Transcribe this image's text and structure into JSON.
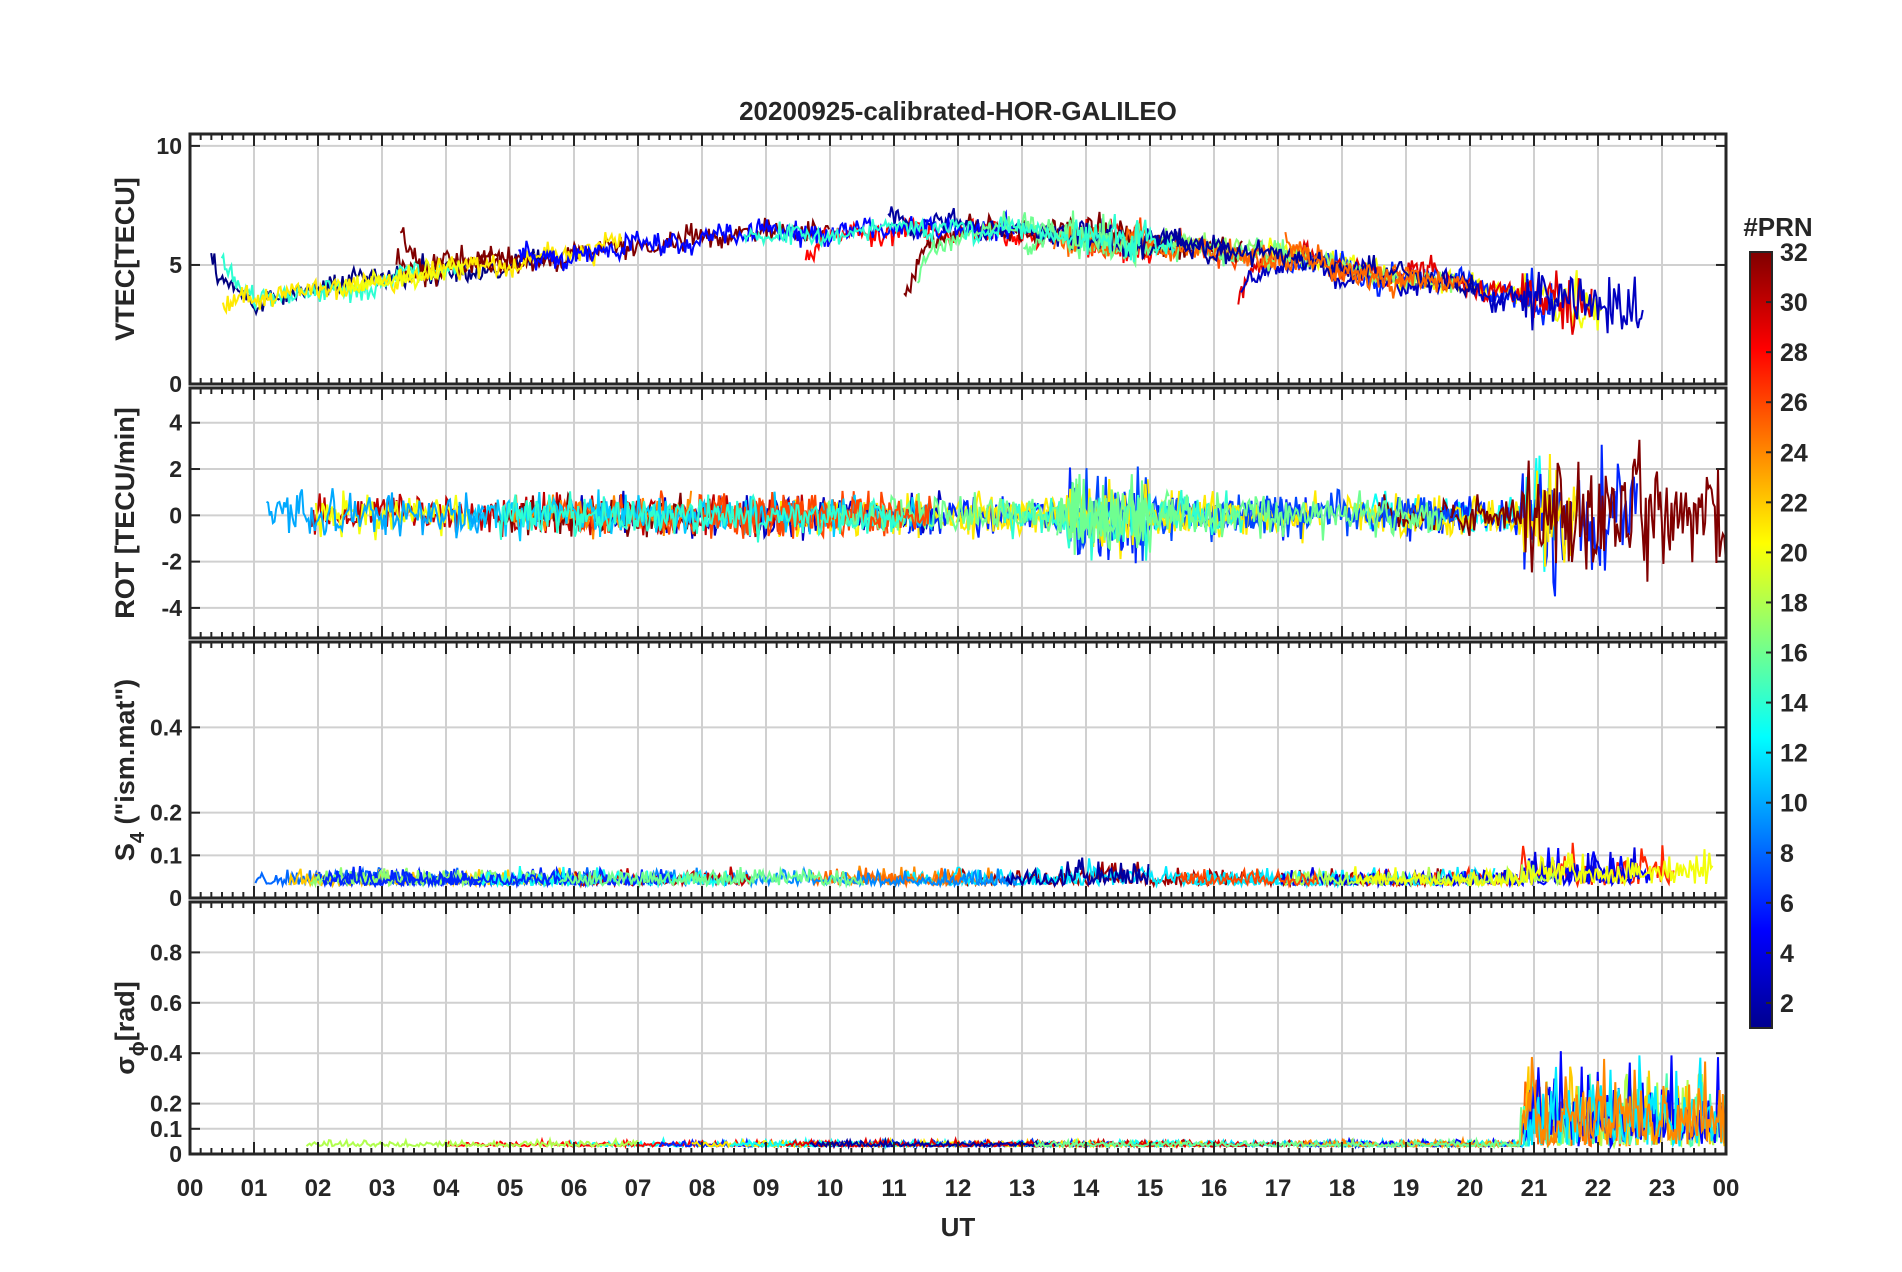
{
  "title": "20200925-calibrated-HOR-GALILEO",
  "colors": {
    "axis": "#262626",
    "grid": "#d0d0d0",
    "colormap": "jet"
  },
  "chart_data": [
    {
      "type": "line",
      "panel": "vtec",
      "ylabel": "VTEC[TECU]",
      "ylim": [
        0,
        10.5
      ],
      "yticks": [
        0,
        5,
        10
      ],
      "xlim": [
        0,
        24
      ],
      "grid": true
    },
    {
      "type": "line",
      "panel": "rot",
      "ylabel": "ROT [TECU/min]",
      "ylim": [
        -5.3,
        5.5
      ],
      "yticks": [
        -4,
        -2,
        0,
        2,
        4
      ],
      "xlim": [
        0,
        24
      ],
      "grid": true
    },
    {
      "type": "line",
      "panel": "s4",
      "ylabel_main": "S",
      "ylabel_sub": "4",
      "ylabel_rest": " (\"ism.mat\")",
      "ylim": [
        0,
        0.6
      ],
      "yticks": [
        0,
        0.1,
        0.2,
        0.4
      ],
      "ytick_labels": [
        "0",
        "0.1",
        "0.2",
        "0.4"
      ],
      "xlim": [
        0,
        24
      ],
      "grid": true
    },
    {
      "type": "line",
      "panel": "sigma_phi",
      "ylabel_main": "σ",
      "ylabel_sub": "ϕ",
      "ylabel_rest": "[rad]",
      "ylim": [
        0,
        1.0
      ],
      "yticks": [
        0,
        0.1,
        0.2,
        0.4,
        0.6,
        0.8
      ],
      "ytick_labels": [
        "0",
        "0.1",
        "0.2",
        "0.4",
        "0.6",
        "0.8"
      ],
      "xlim": [
        0,
        24
      ],
      "grid": true
    }
  ],
  "x_axis": {
    "label": "UT",
    "ticks": [
      "00",
      "01",
      "02",
      "03",
      "04",
      "05",
      "06",
      "07",
      "08",
      "09",
      "10",
      "11",
      "12",
      "13",
      "14",
      "15",
      "16",
      "17",
      "18",
      "19",
      "20",
      "21",
      "22",
      "23",
      "00"
    ]
  },
  "colorbar": {
    "label": "#PRN",
    "range": [
      1,
      32
    ],
    "ticks": [
      "2",
      "4",
      "6",
      "8",
      "10",
      "12",
      "14",
      "16",
      "18",
      "20",
      "22",
      "24",
      "26",
      "28",
      "30",
      "32"
    ],
    "placement": "right"
  }
}
